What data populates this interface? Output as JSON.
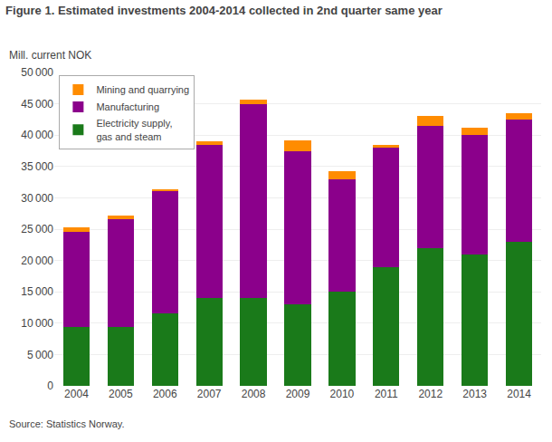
{
  "chart_data": {
    "type": "bar",
    "stacked": true,
    "title": "Figure 1. Estimated investments 2004-2014 collected in 2nd quarter same year",
    "ylabel": "Mill. current NOK",
    "annotations": [
      "Source: Statistics Norway."
    ],
    "categories": [
      "2004",
      "2005",
      "2006",
      "2007",
      "2008",
      "2009",
      "2010",
      "2011",
      "2012",
      "2013",
      "2014"
    ],
    "series": [
      {
        "name": "Electricity supply,\ngas and steam",
        "color": "#1a7a1a",
        "values": [
          9400,
          9400,
          11500,
          14000,
          14000,
          13000,
          15000,
          19000,
          22000,
          21000,
          23000
        ]
      },
      {
        "name": "Manufacturing",
        "color": "#8b008b",
        "values": [
          15200,
          17200,
          19500,
          24500,
          31000,
          24500,
          18000,
          19000,
          19500,
          19000,
          19500
        ]
      },
      {
        "name": "Mining and quarrying",
        "color": "#ff8c00",
        "values": [
          700,
          500,
          400,
          500,
          700,
          1700,
          1300,
          500,
          1500,
          1200,
          1000
        ]
      }
    ],
    "ylim": [
      0,
      50000
    ],
    "yticks": [
      0,
      {
        "value": 5000,
        "label": "5 000"
      },
      {
        "value": 10000,
        "label": "10 000"
      },
      {
        "value": 15000,
        "label": "15 000"
      },
      {
        "value": 20000,
        "label": "20 000"
      },
      {
        "value": 25000,
        "label": "25 000"
      },
      {
        "value": 30000,
        "label": "30 000"
      },
      {
        "value": 35000,
        "label": "35 000"
      },
      {
        "value": 40000,
        "label": "40 000"
      },
      {
        "value": 45000,
        "label": "45 000"
      },
      {
        "value": 50000,
        "label": "50 000"
      }
    ],
    "grid": true,
    "legend": "upper left"
  }
}
